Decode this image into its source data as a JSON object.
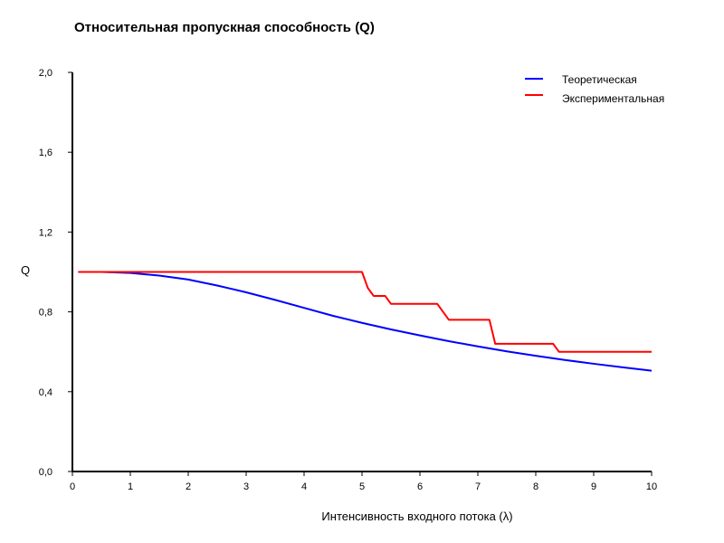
{
  "chart_data": {
    "type": "line",
    "title": "Относительная пропускная способность (Q)",
    "xlabel": "Интенсивность входного потока (λ)",
    "ylabel": "Q",
    "xlim": [
      0,
      10
    ],
    "ylim": [
      0,
      2
    ],
    "x_ticks": [
      0,
      1,
      2,
      3,
      4,
      5,
      6,
      7,
      8,
      9,
      10
    ],
    "x_tick_labels": [
      "0",
      "1",
      "2",
      "3",
      "4",
      "5",
      "6",
      "7",
      "8",
      "9",
      "10"
    ],
    "y_ticks": [
      0,
      0.4,
      0.8,
      1.2,
      1.6,
      2.0
    ],
    "y_tick_labels": [
      "0,0",
      "0,4",
      "0,8",
      "1,2",
      "1,6",
      "2,0"
    ],
    "grid": false,
    "legend_position": "top-right",
    "series": [
      {
        "name": "Теоретическая",
        "color": "#0000ff",
        "x": [
          0.1,
          0.5,
          1,
          1.5,
          2,
          2.5,
          3,
          3.5,
          4,
          4.5,
          5,
          5.5,
          6,
          6.5,
          7,
          7.5,
          8,
          8.5,
          9,
          9.5,
          10
        ],
        "y": [
          1.0,
          1.0,
          0.995,
          0.982,
          0.962,
          0.932,
          0.898,
          0.86,
          0.82,
          0.78,
          0.745,
          0.712,
          0.682,
          0.653,
          0.627,
          0.602,
          0.58,
          0.559,
          0.54,
          0.522,
          0.505
        ]
      },
      {
        "name": "Экспериментальная",
        "color": "#ff0000",
        "x": [
          0.1,
          5.0,
          5.1,
          5.2,
          5.4,
          5.5,
          6.3,
          6.5,
          7.2,
          7.3,
          8.3,
          8.4,
          10.0
        ],
        "y": [
          1.0,
          1.0,
          0.92,
          0.88,
          0.88,
          0.84,
          0.84,
          0.76,
          0.76,
          0.64,
          0.64,
          0.6,
          0.6
        ]
      }
    ]
  }
}
